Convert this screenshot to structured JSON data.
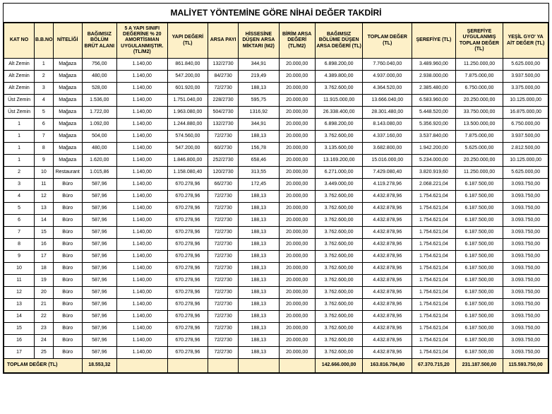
{
  "title": "MALİYET YÖNTEMİNE GÖRE NİHAİ DEĞER TAKDİRİ",
  "headers": [
    "KAT NO",
    "B.B.NO",
    "NİTELİĞİ",
    "BAĞIMSIZ BÖLÜM BRÜT ALANI",
    "5 A YAPI SINIFI DEĞERİNE % 20 AMORTİSMAN UYGULANMIŞTIR. (TL/M2)",
    "YAPI DEĞERİ (TL)",
    "ARSA PAYI",
    "HİSSESİNE DÜŞEN ARSA MİKTARI (M2)",
    "BİRİM ARSA DEĞERİ (TL/M2)",
    "BAĞIMSIZ BÖLÜME DÜŞEN ARSA DEĞERİ (TL)",
    "TOPLAM DEĞER (TL)",
    "ŞEREFİYE (TL)",
    "ŞEREFİYE UYGULANMIŞ TOPLAM DEĞER (TL)",
    "YEŞİL GYO' YA AİT DEĞER (TL)"
  ],
  "rows": [
    [
      "Alt Zemin",
      "1",
      "Mağaza",
      "756,00",
      "1.140,00",
      "861.840,00",
      "132/2730",
      "344,91",
      "20.000,00",
      "6.898.200,00",
      "7.760.040,00",
      "3.489.960,00",
      "11.250.000,00",
      "5.625.000,00"
    ],
    [
      "Alt Zemin",
      "2",
      "Mağaza",
      "480,00",
      "1.140,00",
      "547.200,00",
      "84/2730",
      "219,49",
      "20.000,00",
      "4.389.800,00",
      "4.937.000,00",
      "2.938.000,00",
      "7.875.000,00",
      "3.937.500,00"
    ],
    [
      "Alt Zemin",
      "3",
      "Mağaza",
      "528,00",
      "1.140,00",
      "601.920,00",
      "72/2730",
      "188,13",
      "20.000,00",
      "3.762.600,00",
      "4.364.520,00",
      "2.385.480,00",
      "6.750.000,00",
      "3.375.000,00"
    ],
    [
      "Üst Zemin",
      "4",
      "Mağaza",
      "1.536,00",
      "1.140,00",
      "1.751.040,00",
      "228/2730",
      "595,75",
      "20.000,00",
      "11.915.000,00",
      "13.666.040,00",
      "6.583.960,00",
      "20.250.000,00",
      "10.125.000,00"
    ],
    [
      "Üst Zemin",
      "5",
      "Mağaza",
      "1.722,00",
      "1.140,00",
      "1.963.080,00",
      "504/2730",
      "1316,92",
      "20.000,00",
      "26.338.400,00",
      "28.301.480,00",
      "5.448.520,00",
      "33.750.000,00",
      "16.875.000,00"
    ],
    [
      "1",
      "6",
      "Mağaza",
      "1.092,00",
      "1.140,00",
      "1.244.880,00",
      "132/2730",
      "344,91",
      "20.000,00",
      "6.898.200,00",
      "8.143.080,00",
      "5.356.920,00",
      "13.500.000,00",
      "6.750.000,00"
    ],
    [
      "1",
      "7",
      "Mağaza",
      "504,00",
      "1.140,00",
      "574.560,00",
      "72/2730",
      "188,13",
      "20.000,00",
      "3.762.600,00",
      "4.337.160,00",
      "3.537.840,00",
      "7.875.000,00",
      "3.937.500,00"
    ],
    [
      "1",
      "8",
      "Mağaza",
      "480,00",
      "1.140,00",
      "547.200,00",
      "60/2730",
      "156,78",
      "20.000,00",
      "3.135.600,00",
      "3.682.800,00",
      "1.942.200,00",
      "5.625.000,00",
      "2.812.500,00"
    ],
    [
      "1",
      "9",
      "Mağaza",
      "1.620,00",
      "1.140,00",
      "1.846.800,00",
      "252/2730",
      "658,46",
      "20.000,00",
      "13.169.200,00",
      "15.016.000,00",
      "5.234.000,00",
      "20.250.000,00",
      "10.125.000,00"
    ],
    [
      "2",
      "10",
      "Restaurant",
      "1.015,86",
      "1.140,00",
      "1.158.080,40",
      "120/2730",
      "313,55",
      "20.000,00",
      "6.271.000,00",
      "7.429.080,40",
      "3.820.919,60",
      "11.250.000,00",
      "5.625.000,00"
    ],
    [
      "3",
      "11",
      "Büro",
      "587,96",
      "1.140,00",
      "670.278,96",
      "66/2730",
      "172,45",
      "20.000,00",
      "3.449.000,00",
      "4.119.278,96",
      "2.068.221,04",
      "6.187.500,00",
      "3.093.750,00"
    ],
    [
      "4",
      "12",
      "Büro",
      "587,96",
      "1.140,00",
      "670.278,96",
      "72/2730",
      "188,13",
      "20.000,00",
      "3.762.600,00",
      "4.432.878,96",
      "1.754.621,04",
      "6.187.500,00",
      "3.093.750,00"
    ],
    [
      "5",
      "13",
      "Büro",
      "587,96",
      "1.140,00",
      "670.278,96",
      "72/2730",
      "188,13",
      "20.000,00",
      "3.762.600,00",
      "4.432.878,96",
      "1.754.621,04",
      "6.187.500,00",
      "3.093.750,00"
    ],
    [
      "6",
      "14",
      "Büro",
      "587,96",
      "1.140,00",
      "670.278,96",
      "72/2730",
      "188,13",
      "20.000,00",
      "3.762.600,00",
      "4.432.878,96",
      "1.754.621,04",
      "6.187.500,00",
      "3.093.750,00"
    ],
    [
      "7",
      "15",
      "Büro",
      "587,96",
      "1.140,00",
      "670.278,96",
      "72/2730",
      "188,13",
      "20.000,00",
      "3.762.600,00",
      "4.432.878,96",
      "1.754.621,04",
      "6.187.500,00",
      "3.093.750,00"
    ],
    [
      "8",
      "16",
      "Büro",
      "587,96",
      "1.140,00",
      "670.278,96",
      "72/2730",
      "188,13",
      "20.000,00",
      "3.762.600,00",
      "4.432.878,96",
      "1.754.621,04",
      "6.187.500,00",
      "3.093.750,00"
    ],
    [
      "9",
      "17",
      "Büro",
      "587,96",
      "1.140,00",
      "670.278,96",
      "72/2730",
      "188,13",
      "20.000,00",
      "3.762.600,00",
      "4.432.878,96",
      "1.754.621,04",
      "6.187.500,00",
      "3.093.750,00"
    ],
    [
      "10",
      "18",
      "Büro",
      "587,96",
      "1.140,00",
      "670.278,96",
      "72/2730",
      "188,13",
      "20.000,00",
      "3.762.600,00",
      "4.432.878,96",
      "1.754.621,04",
      "6.187.500,00",
      "3.093.750,00"
    ],
    [
      "11",
      "19",
      "Büro",
      "587,96",
      "1.140,00",
      "670.278,96",
      "72/2730",
      "188,13",
      "20.000,00",
      "3.762.600,00",
      "4.432.878,96",
      "1.754.621,04",
      "6.187.500,00",
      "3.093.750,00"
    ],
    [
      "12",
      "20",
      "Büro",
      "587,96",
      "1.140,00",
      "670.278,96",
      "72/2730",
      "188,13",
      "20.000,00",
      "3.762.600,00",
      "4.432.878,96",
      "1.754.621,04",
      "6.187.500,00",
      "3.093.750,00"
    ],
    [
      "13",
      "21",
      "Büro",
      "587,96",
      "1.140,00",
      "670.278,96",
      "72/2730",
      "188,13",
      "20.000,00",
      "3.762.600,00",
      "4.432.878,96",
      "1.754.621,04",
      "6.187.500,00",
      "3.093.750,00"
    ],
    [
      "14",
      "22",
      "Büro",
      "587,96",
      "1.140,00",
      "670.278,96",
      "72/2730",
      "188,13",
      "20.000,00",
      "3.762.600,00",
      "4.432.878,96",
      "1.754.621,04",
      "6.187.500,00",
      "3.093.750,00"
    ],
    [
      "15",
      "23",
      "Büro",
      "587,96",
      "1.140,00",
      "670.278,96",
      "72/2730",
      "188,13",
      "20.000,00",
      "3.762.600,00",
      "4.432.878,96",
      "1.754.621,04",
      "6.187.500,00",
      "3.093.750,00"
    ],
    [
      "16",
      "24",
      "Büro",
      "587,96",
      "1.140,00",
      "670.278,96",
      "72/2730",
      "188,13",
      "20.000,00",
      "3.762.600,00",
      "4.432.878,96",
      "1.754.621,04",
      "6.187.500,00",
      "3.093.750,00"
    ],
    [
      "17",
      "25",
      "Büro",
      "587,96",
      "1.140,00",
      "670.278,96",
      "72/2730",
      "188,13",
      "20.000,00",
      "3.762.600,00",
      "4.432.878,96",
      "1.754.621,04",
      "6.187.500,00",
      "3.093.750,00"
    ]
  ],
  "total": {
    "label": "TOPLAM DEĞER (TL)",
    "cells": [
      "",
      "",
      "",
      "18.553,32",
      "",
      "",
      "",
      "",
      "",
      "142.666.000,00",
      "163.816.784,80",
      "67.370.715,20",
      "231.187.500,00",
      "115.593.750,00"
    ]
  },
  "colors": {
    "header_bg": "#fdf0c8",
    "border": "#000000",
    "total_bg": "#fdf0c8"
  }
}
